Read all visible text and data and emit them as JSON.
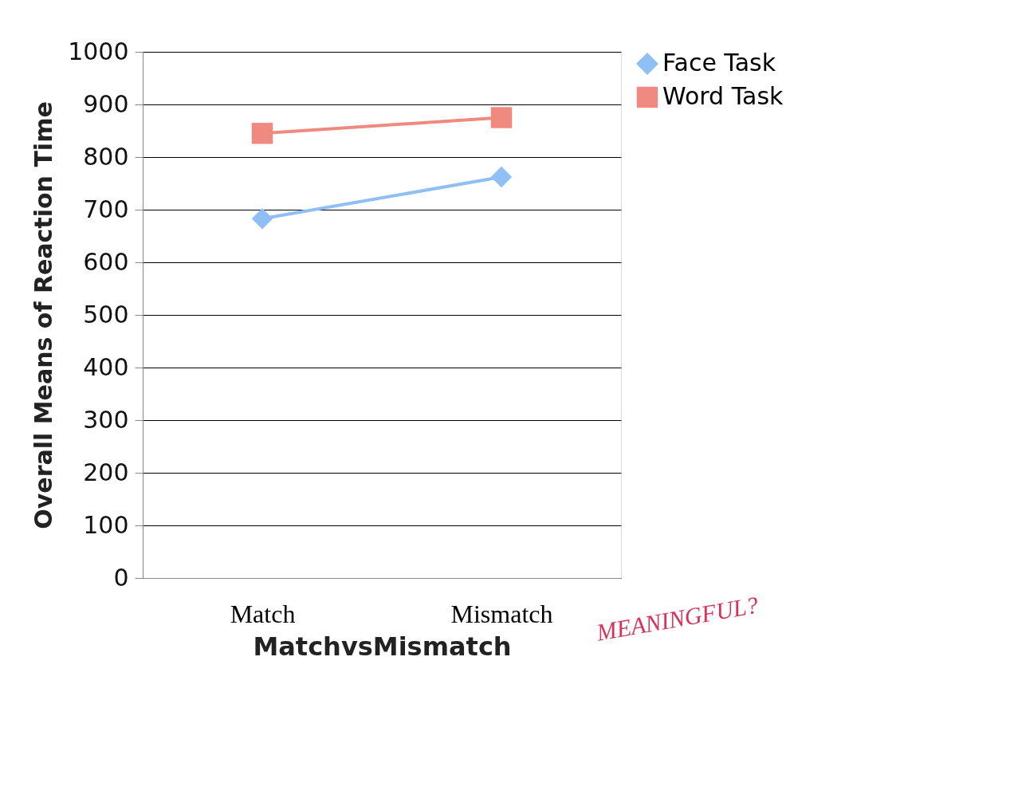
{
  "chart_data": {
    "type": "line",
    "xlabel": "MatchvsMismatch",
    "ylabel": "Overall Means of Reaction Time",
    "categories": [
      "Match",
      "Mismatch"
    ],
    "series": [
      {
        "name": "Face Task",
        "color": "#8fbff5",
        "marker": "diamond",
        "values": [
          683,
          762
        ]
      },
      {
        "name": "Word Task",
        "color": "#f08a80",
        "marker": "square",
        "values": [
          845,
          875
        ]
      }
    ],
    "ylim": [
      0,
      1000
    ],
    "yticks": [
      0,
      100,
      200,
      300,
      400,
      500,
      600,
      700,
      800,
      900,
      1000
    ],
    "grid": "y",
    "legend": "right",
    "annotations": [
      "MEANINGFUL?"
    ]
  }
}
